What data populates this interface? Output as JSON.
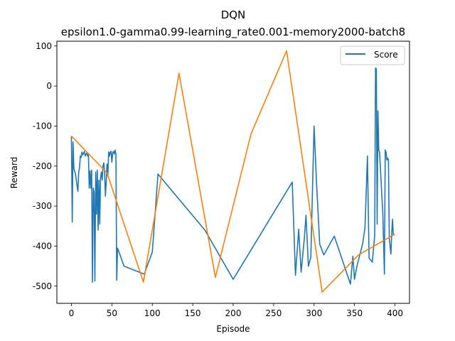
{
  "chart_data": {
    "type": "line",
    "title": "DQN",
    "subtitle": "epsilon1.0-gamma0.99-learning_rate0.001-memory2000-batch8",
    "xlabel": "Episode",
    "ylabel": "Reward",
    "xlim": [
      -18,
      418
    ],
    "ylim": [
      -543,
      112
    ],
    "x_ticks": [
      0,
      50,
      100,
      150,
      200,
      250,
      300,
      350,
      400
    ],
    "y_ticks": [
      100,
      0,
      -100,
      -200,
      -300,
      -400,
      -500
    ],
    "grid": false,
    "legend": {
      "position": "top-right",
      "entries": [
        "Score"
      ]
    },
    "series": [
      {
        "name": "Score",
        "color": "#1f77b4",
        "points": [
          [
            0,
            -125
          ],
          [
            1,
            -340
          ],
          [
            2,
            -140
          ],
          [
            3,
            -205
          ],
          [
            5,
            -220
          ],
          [
            7,
            -250
          ],
          [
            8,
            -263
          ],
          [
            9,
            -215
          ],
          [
            10,
            -205
          ],
          [
            11,
            -175
          ],
          [
            12,
            -178
          ],
          [
            13,
            -165
          ],
          [
            14,
            -172
          ],
          [
            15,
            -168
          ],
          [
            16,
            -163
          ],
          [
            17,
            -175
          ],
          [
            18,
            -170
          ],
          [
            19,
            -168
          ],
          [
            20,
            -175
          ],
          [
            21,
            -170
          ],
          [
            22,
            -255
          ],
          [
            23,
            -212
          ],
          [
            24,
            -255
          ],
          [
            25,
            -210
          ],
          [
            26,
            -490
          ],
          [
            27,
            -255
          ],
          [
            28,
            -265
          ],
          [
            29,
            -487
          ],
          [
            30,
            -215
          ],
          [
            31,
            -320
          ],
          [
            32,
            -210
          ],
          [
            33,
            -360
          ],
          [
            34,
            -235
          ],
          [
            35,
            -345
          ],
          [
            36,
            -230
          ],
          [
            37,
            -215
          ],
          [
            38,
            -235
          ],
          [
            39,
            -200
          ],
          [
            40,
            -192
          ],
          [
            41,
            -215
          ],
          [
            42,
            -275
          ],
          [
            43,
            -240
          ],
          [
            44,
            -195
          ],
          [
            45,
            -225
          ],
          [
            46,
            -165
          ],
          [
            47,
            -175
          ],
          [
            48,
            -165
          ],
          [
            49,
            -163
          ],
          [
            50,
            -190
          ],
          [
            51,
            -167
          ],
          [
            52,
            -163
          ],
          [
            53,
            -170
          ],
          [
            54,
            -160
          ],
          [
            55,
            -170
          ],
          [
            56,
            -485
          ],
          [
            57,
            -405
          ],
          [
            58,
            -410
          ],
          [
            65,
            -450
          ],
          [
            90,
            -470
          ],
          [
            100,
            -415
          ],
          [
            107,
            -220
          ],
          [
            165,
            -360
          ],
          [
            200,
            -483
          ],
          [
            273,
            -240
          ],
          [
            277,
            -473
          ],
          [
            281,
            -358
          ],
          [
            284,
            -465
          ],
          [
            288,
            -380
          ],
          [
            290,
            -323
          ],
          [
            293,
            -450
          ],
          [
            296,
            -428
          ],
          [
            300,
            -100
          ],
          [
            303,
            -240
          ],
          [
            307,
            -395
          ],
          [
            312,
            -422
          ],
          [
            325,
            -375
          ],
          [
            345,
            -495
          ],
          [
            348,
            -425
          ],
          [
            350,
            -483
          ],
          [
            353,
            -450
          ],
          [
            360,
            -395
          ],
          [
            363,
            -353
          ],
          [
            366,
            -175
          ],
          [
            368,
            -430
          ],
          [
            372,
            -440
          ],
          [
            375,
            -373
          ],
          [
            376,
            45
          ],
          [
            377,
            43
          ],
          [
            378,
            -345
          ],
          [
            379,
            -62
          ],
          [
            380,
            -160
          ],
          [
            381,
            -165
          ],
          [
            382,
            -205
          ],
          [
            385,
            -318
          ],
          [
            387,
            -470
          ],
          [
            388,
            -160
          ],
          [
            389,
            -165
          ],
          [
            390,
            -185
          ],
          [
            391,
            -180
          ],
          [
            392,
            -185
          ],
          [
            393,
            -380
          ],
          [
            395,
            -420
          ],
          [
            396,
            -370
          ],
          [
            397,
            -333
          ],
          [
            398,
            -373
          ],
          [
            399,
            -370
          ]
        ]
      },
      {
        "name": "",
        "color": "#ff7f0e",
        "points": [
          [
            0,
            -125
          ],
          [
            44,
            -217
          ],
          [
            89,
            -490
          ],
          [
            133,
            32
          ],
          [
            178,
            -478
          ],
          [
            222,
            -120
          ],
          [
            266,
            88
          ],
          [
            310,
            -515
          ],
          [
            355,
            -422
          ],
          [
            400,
            -370
          ]
        ]
      }
    ]
  }
}
